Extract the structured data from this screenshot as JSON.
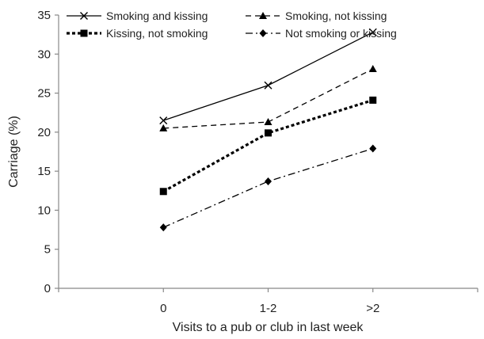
{
  "chart_data": {
    "type": "line",
    "title": "",
    "xlabel": "Visits to a pub or club in last week",
    "ylabel": "Carriage (%)",
    "categories": [
      "0",
      "1-2",
      ">2"
    ],
    "ylim": [
      0,
      35
    ],
    "yticks": [
      0,
      5,
      10,
      15,
      20,
      25,
      30,
      35
    ],
    "grid": false,
    "legend_position": "top",
    "series": [
      {
        "name": "Smoking and kissing",
        "values": [
          21.5,
          26.0,
          32.8
        ],
        "marker": "x-icon",
        "line_style": "solid",
        "color": "#000000"
      },
      {
        "name": "Smoking, not kissing",
        "values": [
          20.5,
          21.3,
          28.1
        ],
        "marker": "triangle-icon",
        "line_style": "dashed",
        "color": "#000000"
      },
      {
        "name": "Kissing, not smoking",
        "values": [
          12.4,
          19.9,
          24.1
        ],
        "marker": "square-icon",
        "line_style": "bold-dotted",
        "color": "#000000"
      },
      {
        "name": "Not smoking or kissing",
        "values": [
          7.8,
          13.7,
          17.9
        ],
        "marker": "diamond-icon",
        "line_style": "dash-dot",
        "color": "#000000"
      }
    ]
  }
}
